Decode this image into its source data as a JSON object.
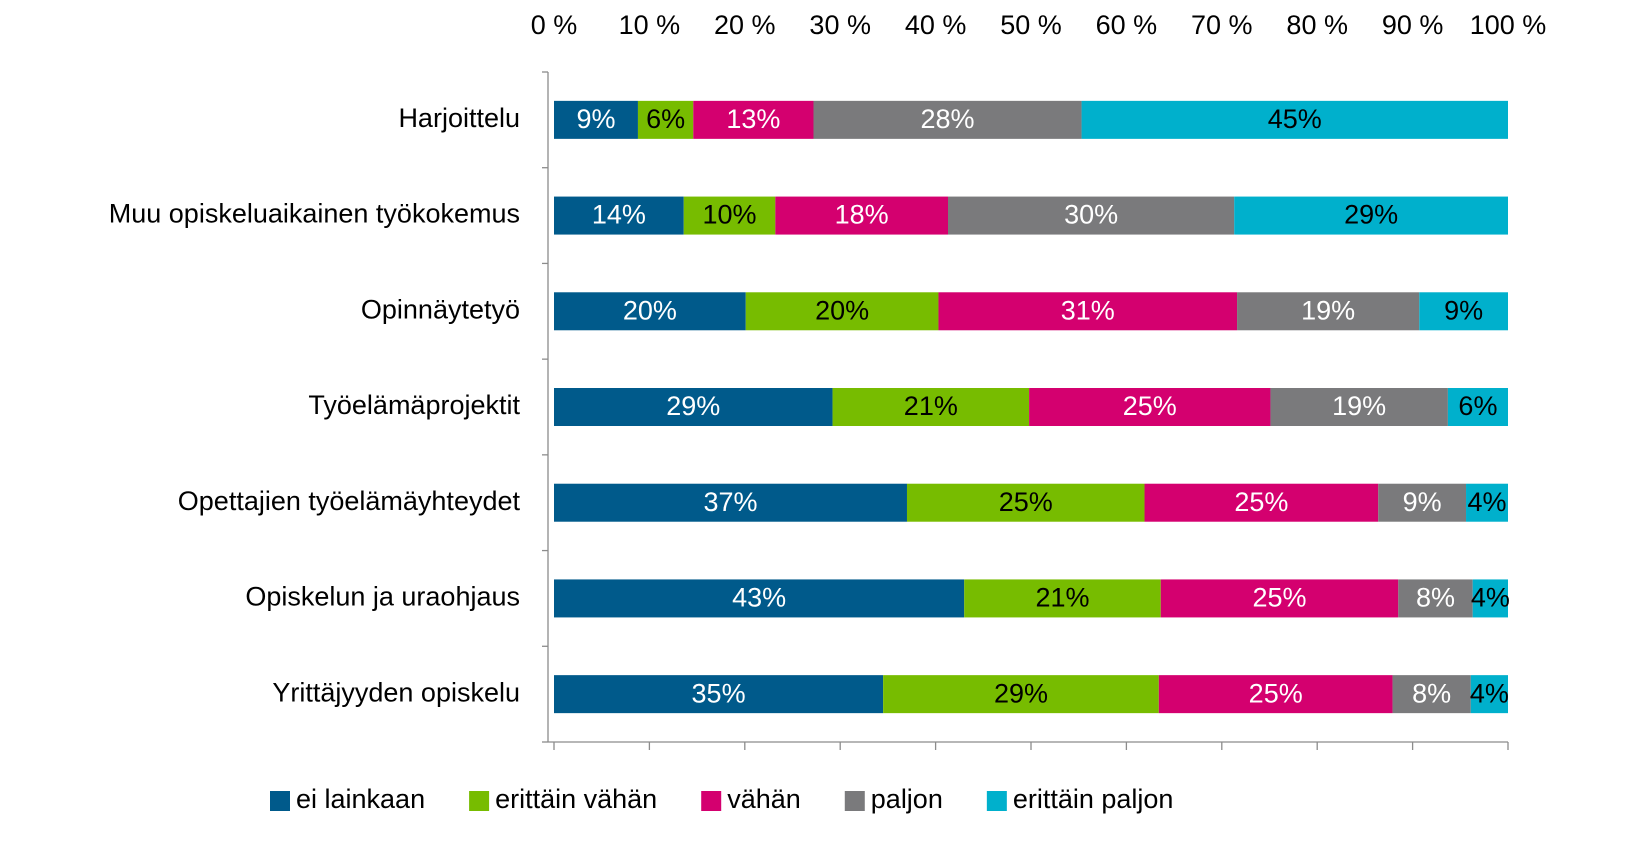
{
  "chart_data": {
    "type": "stacked-bar-horizontal",
    "categories": [
      "Harjoittelu",
      "Muu opiskeluaikainen työkokemus",
      "Opinnäytetyö",
      "Työelämäprojektit",
      "Opettajien työelämäyhteydet",
      "Opiskelun ja uraohjaus",
      "Yrittäjyyden opiskelu"
    ],
    "series": [
      {
        "name": "ei lainkaan",
        "color": "#005a8b",
        "label_color": "#ffffff",
        "values": [
          8.8,
          13.6,
          20.1,
          29.2,
          37.0,
          43.0,
          34.5
        ],
        "value_labels": [
          "9%",
          "14%",
          "20%",
          "29%",
          "37%",
          "43%",
          "35%"
        ]
      },
      {
        "name": "erittäin vähän",
        "color": "#77bc00",
        "label_color": "#000000",
        "values": [
          5.8,
          9.6,
          20.2,
          20.6,
          24.9,
          20.6,
          28.9
        ],
        "value_labels": [
          "6%",
          "10%",
          "20%",
          "21%",
          "25%",
          "21%",
          "29%"
        ]
      },
      {
        "name": "vähän",
        "color": "#d4006f",
        "label_color": "#ffffff",
        "values": [
          12.6,
          18.1,
          31.3,
          25.3,
          24.5,
          24.9,
          24.5
        ],
        "value_labels": [
          "13%",
          "18%",
          "31%",
          "25%",
          "25%",
          "25%",
          "25%"
        ]
      },
      {
        "name": "paljon",
        "color": "#7a7a7c",
        "label_color": "#ffffff",
        "values": [
          28.1,
          30.0,
          19.1,
          18.6,
          9.2,
          7.8,
          8.2
        ],
        "value_labels": [
          "28%",
          "30%",
          "19%",
          "19%",
          "9%",
          "8%",
          "8%"
        ]
      },
      {
        "name": "erittäin paljon",
        "color": "#00b0cc",
        "label_color": "#000000",
        "values": [
          44.7,
          28.7,
          9.3,
          6.3,
          4.4,
          3.7,
          3.9
        ],
        "value_labels": [
          "45%",
          "29%",
          "9%",
          "6%",
          "4%",
          "4%",
          "4%"
        ]
      }
    ],
    "xlim": [
      0,
      100
    ],
    "xticks": [
      {
        "value": 0,
        "label": "0 %"
      },
      {
        "value": 10,
        "label": "10 %"
      },
      {
        "value": 20,
        "label": "20 %"
      },
      {
        "value": 30,
        "label": "30 %"
      },
      {
        "value": 40,
        "label": "40 %"
      },
      {
        "value": 50,
        "label": "50 %"
      },
      {
        "value": 60,
        "label": "60 %"
      },
      {
        "value": 70,
        "label": "70 %"
      },
      {
        "value": 80,
        "label": "80 %"
      },
      {
        "value": 90,
        "label": "90 %"
      },
      {
        "value": 100,
        "label": "100 %"
      }
    ],
    "legend": "bottom"
  }
}
